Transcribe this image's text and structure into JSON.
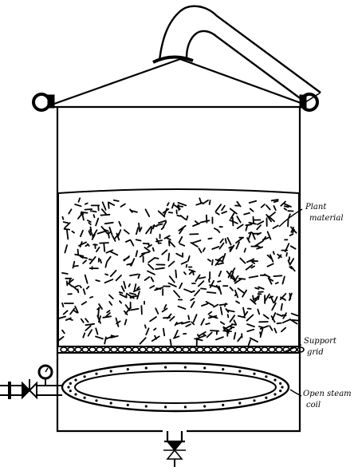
{
  "labels": {
    "plant_material": [
      "Plant",
      "material"
    ],
    "support_grid": [
      "Support",
      "grid"
    ],
    "steam_coil": [
      "Open steam",
      "coil"
    ]
  },
  "icons": [
    "gooseneck-outlet",
    "clamp-ring",
    "pressure-gauge",
    "steam-valve",
    "drain-valve"
  ]
}
